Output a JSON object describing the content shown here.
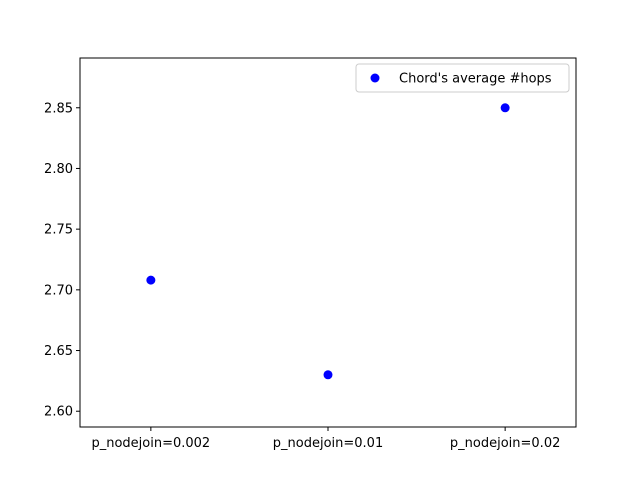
{
  "chart_data": {
    "type": "scatter",
    "title": "",
    "xlabel": "",
    "ylabel": "",
    "categories": [
      "p_nodejoin=0.002",
      "p_nodejoin=0.01",
      "p_nodejoin=0.02"
    ],
    "series": [
      {
        "name": "Chord's average #hops",
        "color": "#0000ff",
        "marker": "circle",
        "values": [
          2.708,
          2.63,
          2.85
        ]
      }
    ],
    "ylim": [
      2.587,
      2.891
    ],
    "yticks": [
      2.6,
      2.65,
      2.7,
      2.75,
      2.8,
      2.85
    ],
    "ytick_labels": [
      "2.60",
      "2.65",
      "2.70",
      "2.75",
      "2.80",
      "2.85"
    ],
    "grid": false,
    "legend_position": "top-right"
  }
}
